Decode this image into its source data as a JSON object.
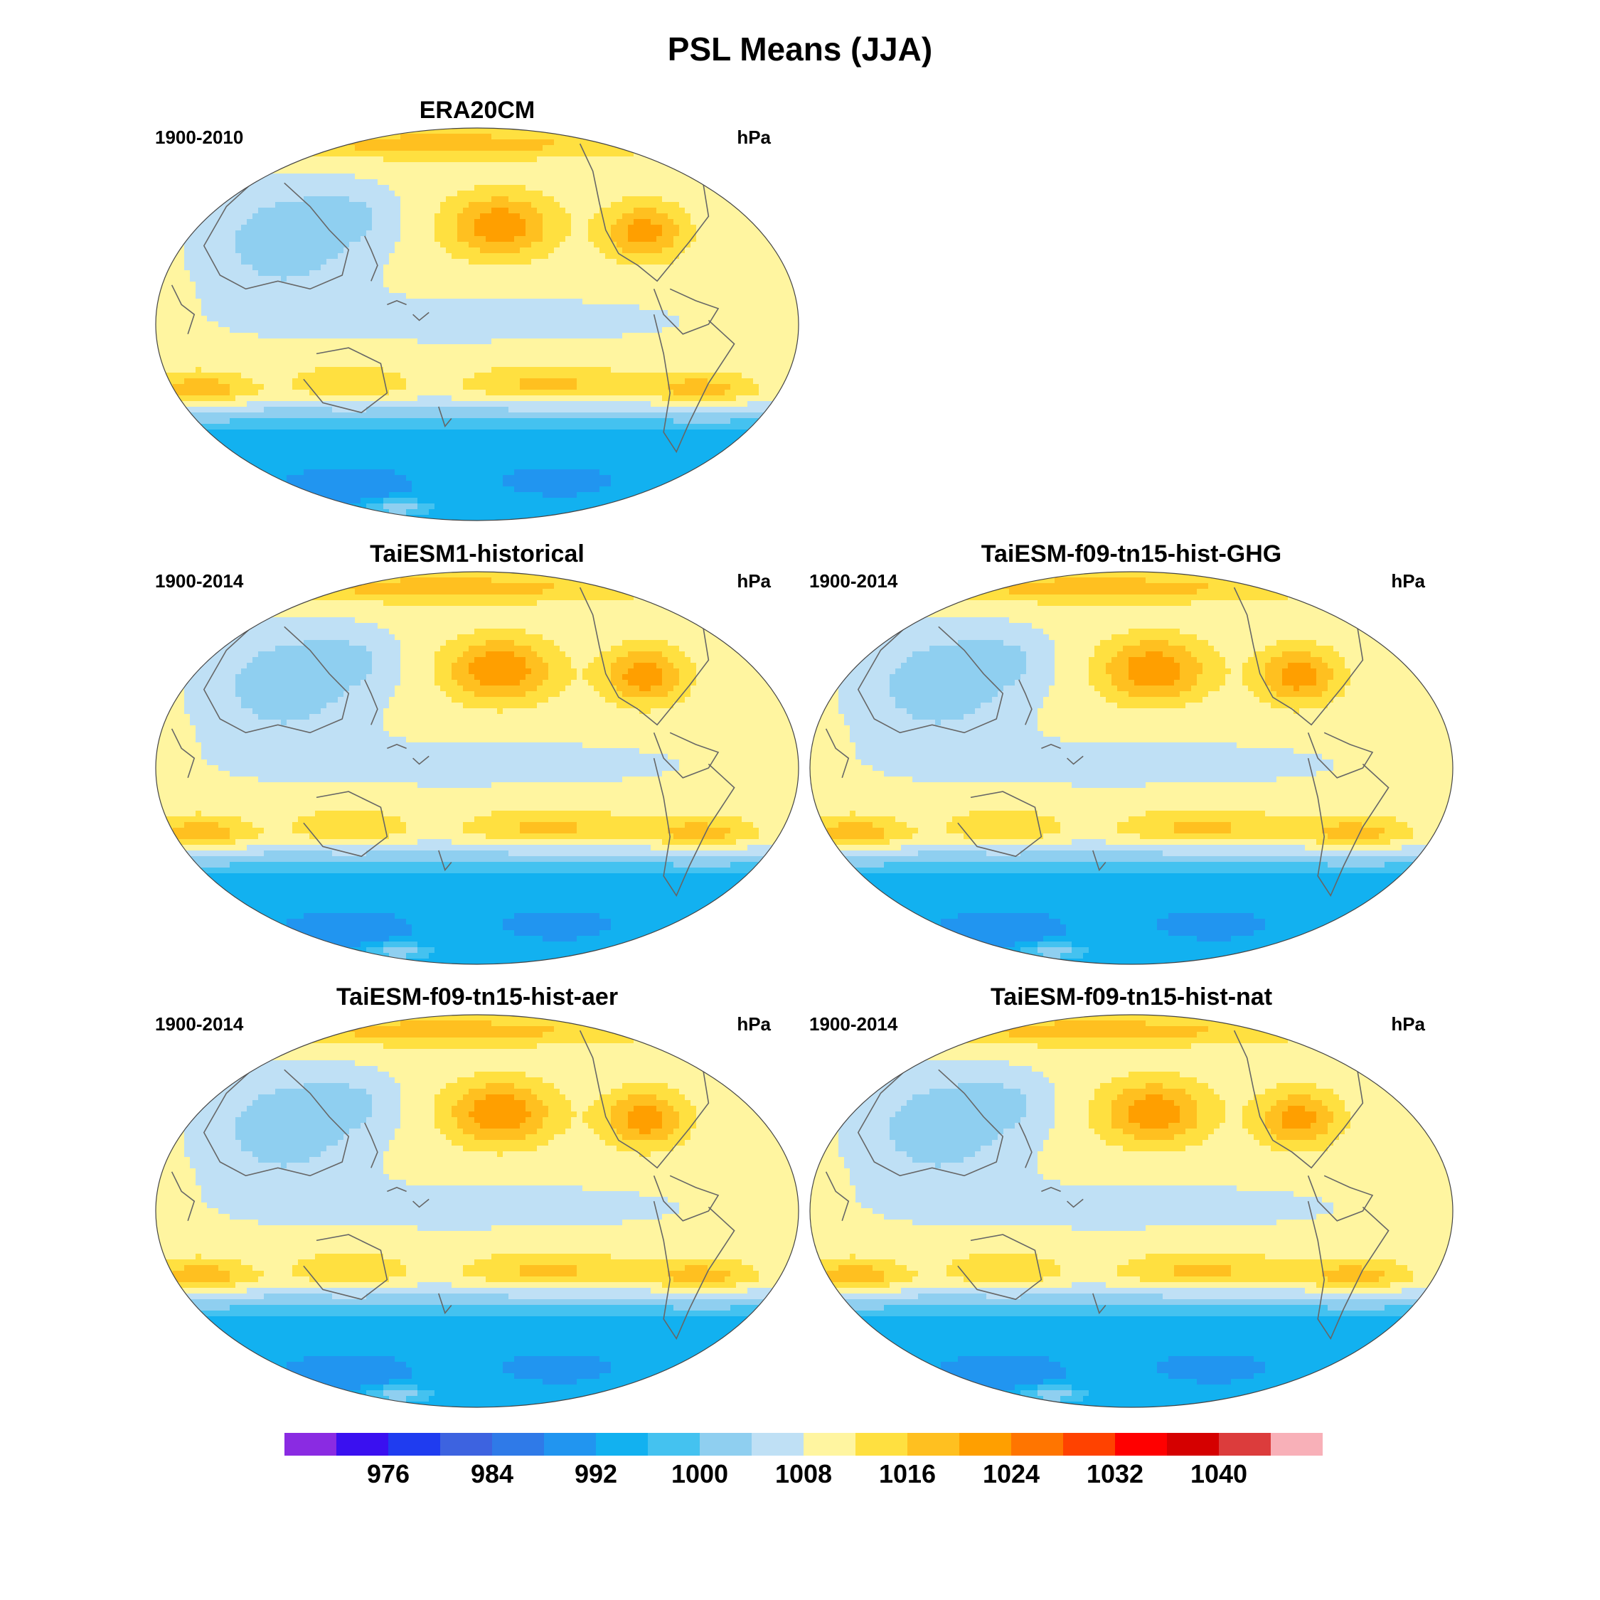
{
  "title": "PSL Means (JJA)",
  "panels": [
    {
      "title": "ERA20CM",
      "period": "1900-2010",
      "units": "hPa",
      "h_max": 1.0
    },
    {
      "title": "TaiESM1-historical",
      "period": "1900-2014",
      "units": "hPa",
      "h_max": 1.05
    },
    {
      "title": "TaiESM-f09-tn15-hist-GHG",
      "period": "1900-2014",
      "units": "hPa",
      "h_max": 1.02
    },
    {
      "title": "TaiESM-f09-tn15-hist-aer",
      "period": "1900-2014",
      "units": "hPa",
      "h_max": 1.04
    },
    {
      "title": "TaiESM-f09-tn15-hist-nat",
      "period": "1900-2014",
      "units": "hPa",
      "h_max": 1.0
    }
  ],
  "colorbar": {
    "colors": [
      "#8a2be2",
      "#3a10f0",
      "#1f3cf0",
      "#3d63e0",
      "#2f7ae8",
      "#2195f0",
      "#12b1f0",
      "#44c2f0",
      "#8fcff0",
      "#bfe0f5",
      "#fff5a0",
      "#ffe040",
      "#ffc020",
      "#ff9f00",
      "#ff7500",
      "#ff4200",
      "#ff0000",
      "#d50000",
      "#dc3c3c",
      "#f8b0b8"
    ],
    "tick_labels": [
      "976",
      "984",
      "992",
      "1000",
      "1008",
      "1016",
      "1024",
      "1032",
      "1040"
    ]
  },
  "chart_data": {
    "type": "heatmap",
    "title": "PSL Means (JJA)",
    "units": "hPa",
    "projection": "Robinson (Pacific-centered)",
    "contour_levels": [
      972,
      976,
      980,
      984,
      988,
      992,
      996,
      1000,
      1004,
      1008,
      1012,
      1016,
      1020,
      1024,
      1028,
      1032,
      1036,
      1040,
      1044
    ]
  }
}
